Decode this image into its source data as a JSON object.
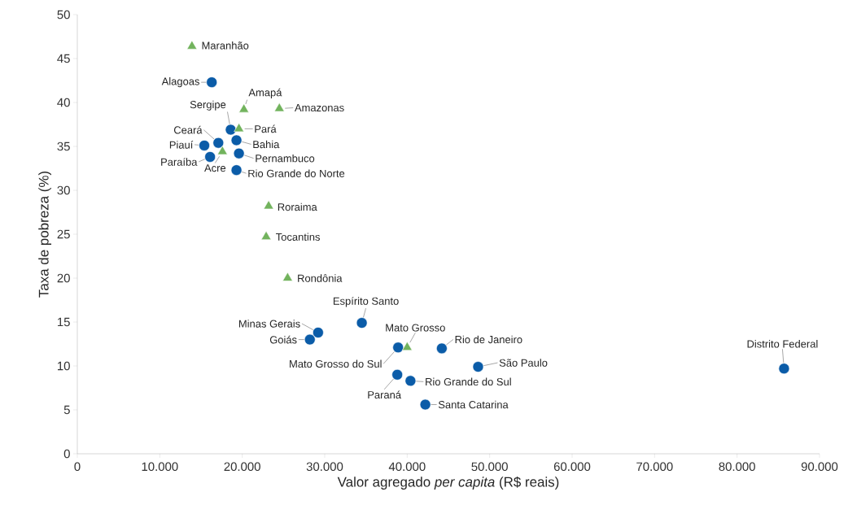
{
  "chart_data": {
    "type": "scatter",
    "xlabel": "Valor agregado *per capita* (R$ reais)",
    "ylabel": "Taxa de pobreza (%)",
    "xlim": [
      0,
      90000
    ],
    "ylim": [
      0,
      50
    ],
    "xticks": [
      {
        "value": 0,
        "label": "0"
      },
      {
        "value": 10000,
        "label": "10.000"
      },
      {
        "value": 20000,
        "label": "20.000"
      },
      {
        "value": 30000,
        "label": "30.000"
      },
      {
        "value": 40000,
        "label": "40.000"
      },
      {
        "value": 50000,
        "label": "50.000"
      },
      {
        "value": 60000,
        "label": "60.000"
      },
      {
        "value": 70000,
        "label": "70.000"
      },
      {
        "value": 80000,
        "label": "80.000"
      },
      {
        "value": 90000,
        "label": "90.000"
      }
    ],
    "yticks": [
      0,
      5,
      10,
      15,
      20,
      25,
      30,
      35,
      40,
      45,
      50
    ],
    "series": [
      {
        "color": "#0b5ca8",
        "marker": "circle",
        "x": [
          16300,
          18600,
          17100,
          15400,
          19300,
          16100,
          19600,
          19300,
          34500,
          29200,
          28200,
          38900,
          44200,
          48600,
          38800,
          40400,
          42200,
          85700
        ],
        "values": [
          42.3,
          36.9,
          35.4,
          35.1,
          35.7,
          33.8,
          34.2,
          32.3,
          14.9,
          13.8,
          13.0,
          12.1,
          12.0,
          9.9,
          9.0,
          8.3,
          5.6,
          9.7
        ]
      },
      {
        "color": "#72b35d",
        "marker": "triangle",
        "x": [
          13900,
          20200,
          24500,
          19600,
          17600,
          23200,
          22900,
          25500,
          40000
        ],
        "values": [
          46.4,
          39.2,
          39.3,
          37.0,
          34.4,
          28.2,
          24.7,
          20.0,
          12.1
        ]
      }
    ],
    "annotations": [
      {
        "text": "Alagoas",
        "x": 16300,
        "y": 42.3
      },
      {
        "text": "Sergipe",
        "x": 18600,
        "y": 36.9
      },
      {
        "text": "Ceará",
        "x": 17100,
        "y": 35.4
      },
      {
        "text": "Piauí",
        "x": 15400,
        "y": 35.1
      },
      {
        "text": "Bahia",
        "x": 19300,
        "y": 35.7
      },
      {
        "text": "Paraíba",
        "x": 16100,
        "y": 33.8
      },
      {
        "text": "Pernambuco",
        "x": 19600,
        "y": 34.2
      },
      {
        "text": "Rio Grande do Norte",
        "x": 19300,
        "y": 32.3
      },
      {
        "text": "Espírito Santo",
        "x": 34500,
        "y": 14.9
      },
      {
        "text": "Minas Gerais",
        "x": 29200,
        "y": 13.8
      },
      {
        "text": "Goiás",
        "x": 28200,
        "y": 13.0
      },
      {
        "text": "Mato Grosso do Sul",
        "x": 38900,
        "y": 12.1
      },
      {
        "text": "Rio de Janeiro",
        "x": 44200,
        "y": 12.0
      },
      {
        "text": "São Paulo",
        "x": 48600,
        "y": 9.9
      },
      {
        "text": "Paraná",
        "x": 38800,
        "y": 9.0
      },
      {
        "text": "Rio Grande do Sul",
        "x": 40400,
        "y": 8.3
      },
      {
        "text": "Santa Catarina",
        "x": 42200,
        "y": 5.6
      },
      {
        "text": "Distrito Federal",
        "x": 85700,
        "y": 9.7
      },
      {
        "text": "Maranhão",
        "x": 13900,
        "y": 46.4
      },
      {
        "text": "Amapá",
        "x": 20200,
        "y": 39.2
      },
      {
        "text": "Amazonas",
        "x": 24500,
        "y": 39.3
      },
      {
        "text": "Pará",
        "x": 19600,
        "y": 37.0
      },
      {
        "text": "Acre",
        "x": 17600,
        "y": 34.4
      },
      {
        "text": "Roraima",
        "x": 23200,
        "y": 28.2
      },
      {
        "text": "Tocantins",
        "x": 22900,
        "y": 24.7
      },
      {
        "text": "Rondônia",
        "x": 25500,
        "y": 20.0
      },
      {
        "text": "Mato Grosso",
        "x": 40000,
        "y": 12.1
      }
    ]
  }
}
